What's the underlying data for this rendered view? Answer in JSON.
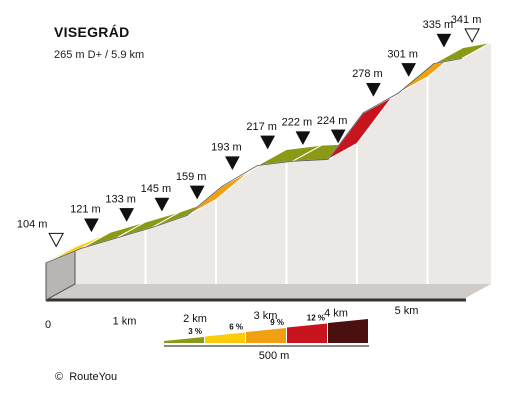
{
  "title": "VISEGRÁD",
  "subtitle": "265 m D+ / 5.9 km",
  "credit": "RouteYou",
  "credit_symbol": "©",
  "chart_data": {
    "type": "area",
    "title": "VISEGRÁD",
    "subtitle": "265 m D+ / 5.9 km",
    "x_unit": "km",
    "y_unit": "m",
    "x_ticks": [
      {
        "value": 0,
        "label": "0"
      },
      {
        "value": 1,
        "label": "1 km"
      },
      {
        "value": 2,
        "label": "2 km"
      },
      {
        "value": 3,
        "label": "3 km"
      },
      {
        "value": 4,
        "label": "4 km"
      },
      {
        "value": 5,
        "label": "5 km"
      }
    ],
    "points": [
      {
        "km": 0.0,
        "elevation": 104,
        "label": "104 m",
        "marker": "open"
      },
      {
        "km": 0.5,
        "elevation": 121,
        "label": "121 m",
        "marker": "filled"
      },
      {
        "km": 1.0,
        "elevation": 133,
        "label": "133 m",
        "marker": "filled"
      },
      {
        "km": 1.5,
        "elevation": 145,
        "label": "145 m",
        "marker": "filled"
      },
      {
        "km": 2.0,
        "elevation": 159,
        "label": "159 m",
        "marker": "filled"
      },
      {
        "km": 2.5,
        "elevation": 193,
        "label": "193 m",
        "marker": "filled"
      },
      {
        "km": 3.0,
        "elevation": 217,
        "label": "217 m",
        "marker": "filled"
      },
      {
        "km": 3.5,
        "elevation": 222,
        "label": "222 m",
        "marker": "filled"
      },
      {
        "km": 4.0,
        "elevation": 224,
        "label": "224 m",
        "marker": "filled"
      },
      {
        "km": 4.5,
        "elevation": 278,
        "label": "278 m",
        "marker": "filled"
      },
      {
        "km": 5.0,
        "elevation": 301,
        "label": "301 m",
        "marker": "filled"
      },
      {
        "km": 5.5,
        "elevation": 335,
        "label": "335 m",
        "marker": "filled"
      },
      {
        "km": 5.9,
        "elevation": 341,
        "label": "341 m",
        "marker": "open"
      }
    ],
    "segments": [
      {
        "from_km": 0.0,
        "to_km": 0.5,
        "color": "#fccc0a"
      },
      {
        "from_km": 0.5,
        "to_km": 1.0,
        "color": "#8b9a14"
      },
      {
        "from_km": 1.0,
        "to_km": 1.5,
        "color": "#8b9a14"
      },
      {
        "from_km": 1.5,
        "to_km": 2.0,
        "color": "#8b9a14"
      },
      {
        "from_km": 2.0,
        "to_km": 2.5,
        "color": "#f0a010"
      },
      {
        "from_km": 2.5,
        "to_km": 3.0,
        "color": "#fccc0a"
      },
      {
        "from_km": 3.0,
        "to_km": 3.5,
        "color": "#8b9a14"
      },
      {
        "from_km": 3.5,
        "to_km": 4.0,
        "color": "#8b9a14"
      },
      {
        "from_km": 4.0,
        "to_km": 4.5,
        "color": "#c8141e"
      },
      {
        "from_km": 4.5,
        "to_km": 5.0,
        "color": "#fccc0a"
      },
      {
        "from_km": 5.0,
        "to_km": 5.5,
        "color": "#f0a010"
      },
      {
        "from_km": 5.5,
        "to_km": 5.9,
        "color": "#8b9a14"
      }
    ],
    "legend": {
      "items": [
        {
          "label": "3 %",
          "color": "#8b9a14"
        },
        {
          "label": "6 %",
          "color": "#fccc0a"
        },
        {
          "label": "9 %",
          "color": "#f0a010"
        },
        {
          "label": "12 %",
          "color": "#c8141e"
        },
        {
          "label": "",
          "color": "#4a1010"
        }
      ],
      "scale_label": "500 m"
    },
    "colors": {
      "side_fill": "#ece8e6",
      "base": "#cfcbc9",
      "base_dark": "#333333",
      "grid": "#ffffff"
    }
  }
}
